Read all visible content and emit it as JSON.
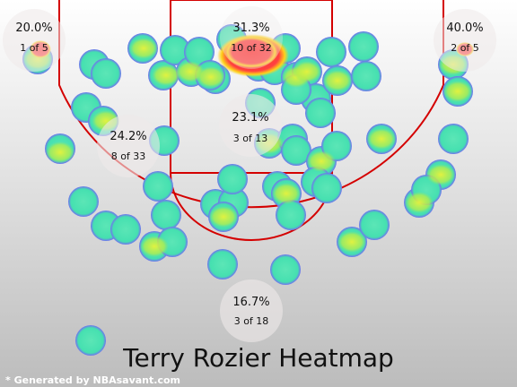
{
  "chart_data": {
    "type": "heatmap",
    "title": "Terry Rozier Heatmap",
    "credit": "* Generated by NBAsavant.com",
    "zones": [
      {
        "name": "left-corner-three",
        "pct": "20.0%",
        "frac": "1 of 5"
      },
      {
        "name": "paint-top",
        "pct": "31.3%",
        "frac": "10 of 32"
      },
      {
        "name": "right-corner-three",
        "pct": "40.0%",
        "frac": "2 of 5"
      },
      {
        "name": "left-midrange",
        "pct": "24.2%",
        "frac": "8 of 33"
      },
      {
        "name": "center-midrange",
        "pct": "23.1%",
        "frac": "3 of 13"
      },
      {
        "name": "top-of-key-three",
        "pct": "16.7%",
        "frac": "3 of 18"
      }
    ],
    "colors": {
      "court_line": "#d40000",
      "shot_blob": "#4fe8b2",
      "hot_spot": "#ff3333",
      "background_top": "#ffffff",
      "background_bottom": "#bcbcbc"
    }
  }
}
